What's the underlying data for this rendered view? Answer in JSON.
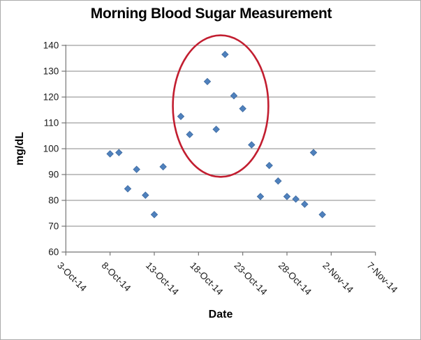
{
  "chart_data": {
    "type": "scatter",
    "title": "Morning Blood Sugar Measurement",
    "xlabel": "Date",
    "ylabel": "mg/dL",
    "ylim": [
      60,
      140
    ],
    "y_ticks": [
      60,
      70,
      80,
      90,
      100,
      110,
      120,
      130,
      140
    ],
    "x_domain_days": 35,
    "x_ticks": [
      {
        "label": "3-Oct-14",
        "day": 0
      },
      {
        "label": "8-Oct-14",
        "day": 5
      },
      {
        "label": "13-Oct-14",
        "day": 10
      },
      {
        "label": "18-Oct-14",
        "day": 15
      },
      {
        "label": "23-Oct-14",
        "day": 20
      },
      {
        "label": "28-Oct-14",
        "day": 25
      },
      {
        "label": "2-Nov-14",
        "day": 30
      },
      {
        "label": "7-Nov-14",
        "day": 35
      }
    ],
    "grid": true,
    "legend": false,
    "points": [
      {
        "date": "8-Oct-14",
        "day": 5,
        "mg_dl": 98
      },
      {
        "date": "9-Oct-14",
        "day": 6,
        "mg_dl": 98.5
      },
      {
        "date": "10-Oct-14",
        "day": 7,
        "mg_dl": 84.5
      },
      {
        "date": "11-Oct-14",
        "day": 8,
        "mg_dl": 92
      },
      {
        "date": "12-Oct-14",
        "day": 9,
        "mg_dl": 82
      },
      {
        "date": "13-Oct-14",
        "day": 10,
        "mg_dl": 74.5
      },
      {
        "date": "14-Oct-14",
        "day": 11,
        "mg_dl": 93
      },
      {
        "date": "16-Oct-14",
        "day": 13,
        "mg_dl": 112.5
      },
      {
        "date": "17-Oct-14",
        "day": 14,
        "mg_dl": 105.5
      },
      {
        "date": "19-Oct-14",
        "day": 16,
        "mg_dl": 126
      },
      {
        "date": "20-Oct-14",
        "day": 17,
        "mg_dl": 107.5
      },
      {
        "date": "21-Oct-14",
        "day": 18,
        "mg_dl": 136.5
      },
      {
        "date": "22-Oct-14",
        "day": 19,
        "mg_dl": 120.5
      },
      {
        "date": "23-Oct-14",
        "day": 20,
        "mg_dl": 115.5
      },
      {
        "date": "24-Oct-14",
        "day": 21,
        "mg_dl": 101.5
      },
      {
        "date": "25-Oct-14",
        "day": 22,
        "mg_dl": 81.5
      },
      {
        "date": "26-Oct-14",
        "day": 23,
        "mg_dl": 93.5
      },
      {
        "date": "27-Oct-14",
        "day": 24,
        "mg_dl": 87.5
      },
      {
        "date": "28-Oct-14",
        "day": 25,
        "mg_dl": 81.5
      },
      {
        "date": "29-Oct-14",
        "day": 26,
        "mg_dl": 80.5
      },
      {
        "date": "30-Oct-14",
        "day": 27,
        "mg_dl": 78.5
      },
      {
        "date": "31-Oct-14",
        "day": 28,
        "mg_dl": 98.5
      },
      {
        "date": "1-Nov-14",
        "day": 29,
        "mg_dl": 74.5
      }
    ],
    "annotation": {
      "shape": "ellipse",
      "center_day": 17.5,
      "center_value": 116.5,
      "radius_days": 5.4,
      "radius_value": 27.4,
      "color": "#c21e30"
    },
    "colors": {
      "marker_fill": "#4f81bd",
      "marker_edge": "#3e6aa0",
      "gridline": "#878787",
      "axis": "#757575",
      "tick_text": "#1a1a1a",
      "annotation": "#c21e30"
    }
  }
}
